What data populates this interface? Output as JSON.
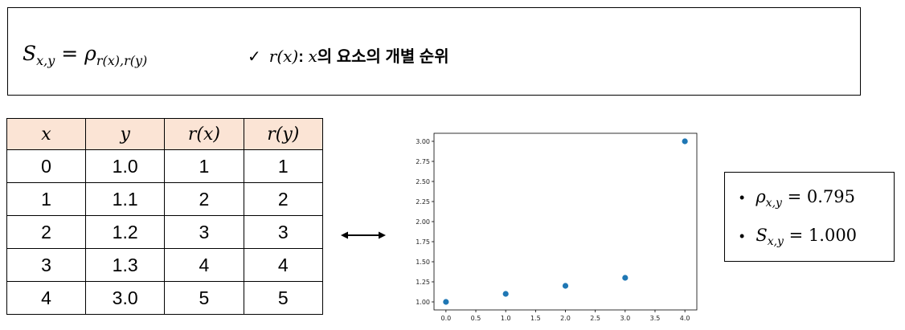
{
  "formula": {
    "lhs": "S",
    "lhs_sub": "x,y",
    "equals": "=",
    "rhs": "ρ",
    "rhs_sub_1": "r(x)",
    "rhs_sub_sep": ",",
    "rhs_sub_2": "r(y)",
    "note_check": "✓",
    "note_term": "r(x)",
    "note_colon": ":",
    "note_var": "x",
    "note_text": "의 요소의 개별 순위"
  },
  "table": {
    "headers": [
      "x",
      "y",
      "r(x)",
      "r(y)"
    ],
    "rows": [
      [
        "0",
        "1.0",
        "1",
        "1"
      ],
      [
        "1",
        "1.1",
        "2",
        "2"
      ],
      [
        "2",
        "1.2",
        "3",
        "3"
      ],
      [
        "3",
        "1.3",
        "4",
        "4"
      ],
      [
        "4",
        "3.0",
        "5",
        "5"
      ]
    ],
    "header_color": "#fbe4d5"
  },
  "chart_data": {
    "type": "scatter",
    "x": [
      0.0,
      1.0,
      2.0,
      3.0,
      4.0
    ],
    "y": [
      1.0,
      1.1,
      1.2,
      1.3,
      3.0
    ],
    "xticks": [
      "0.0",
      "0.5",
      "1.0",
      "1.5",
      "2.0",
      "2.5",
      "3.0",
      "3.5",
      "4.0"
    ],
    "yticks": [
      "1.00",
      "1.25",
      "1.50",
      "1.75",
      "2.00",
      "2.25",
      "2.50",
      "2.75",
      "3.00"
    ],
    "xlim": [
      -0.2,
      4.2
    ],
    "ylim": [
      0.9,
      3.1
    ],
    "marker_color": "#1f77b4",
    "grid": false
  },
  "results": {
    "rho_symbol": "ρ",
    "rho_sub": "x,y",
    "rho_value": "= 0.795",
    "s_symbol": "S",
    "s_sub": "x,y",
    "s_value": "= 1.000",
    "bullet": "•"
  }
}
